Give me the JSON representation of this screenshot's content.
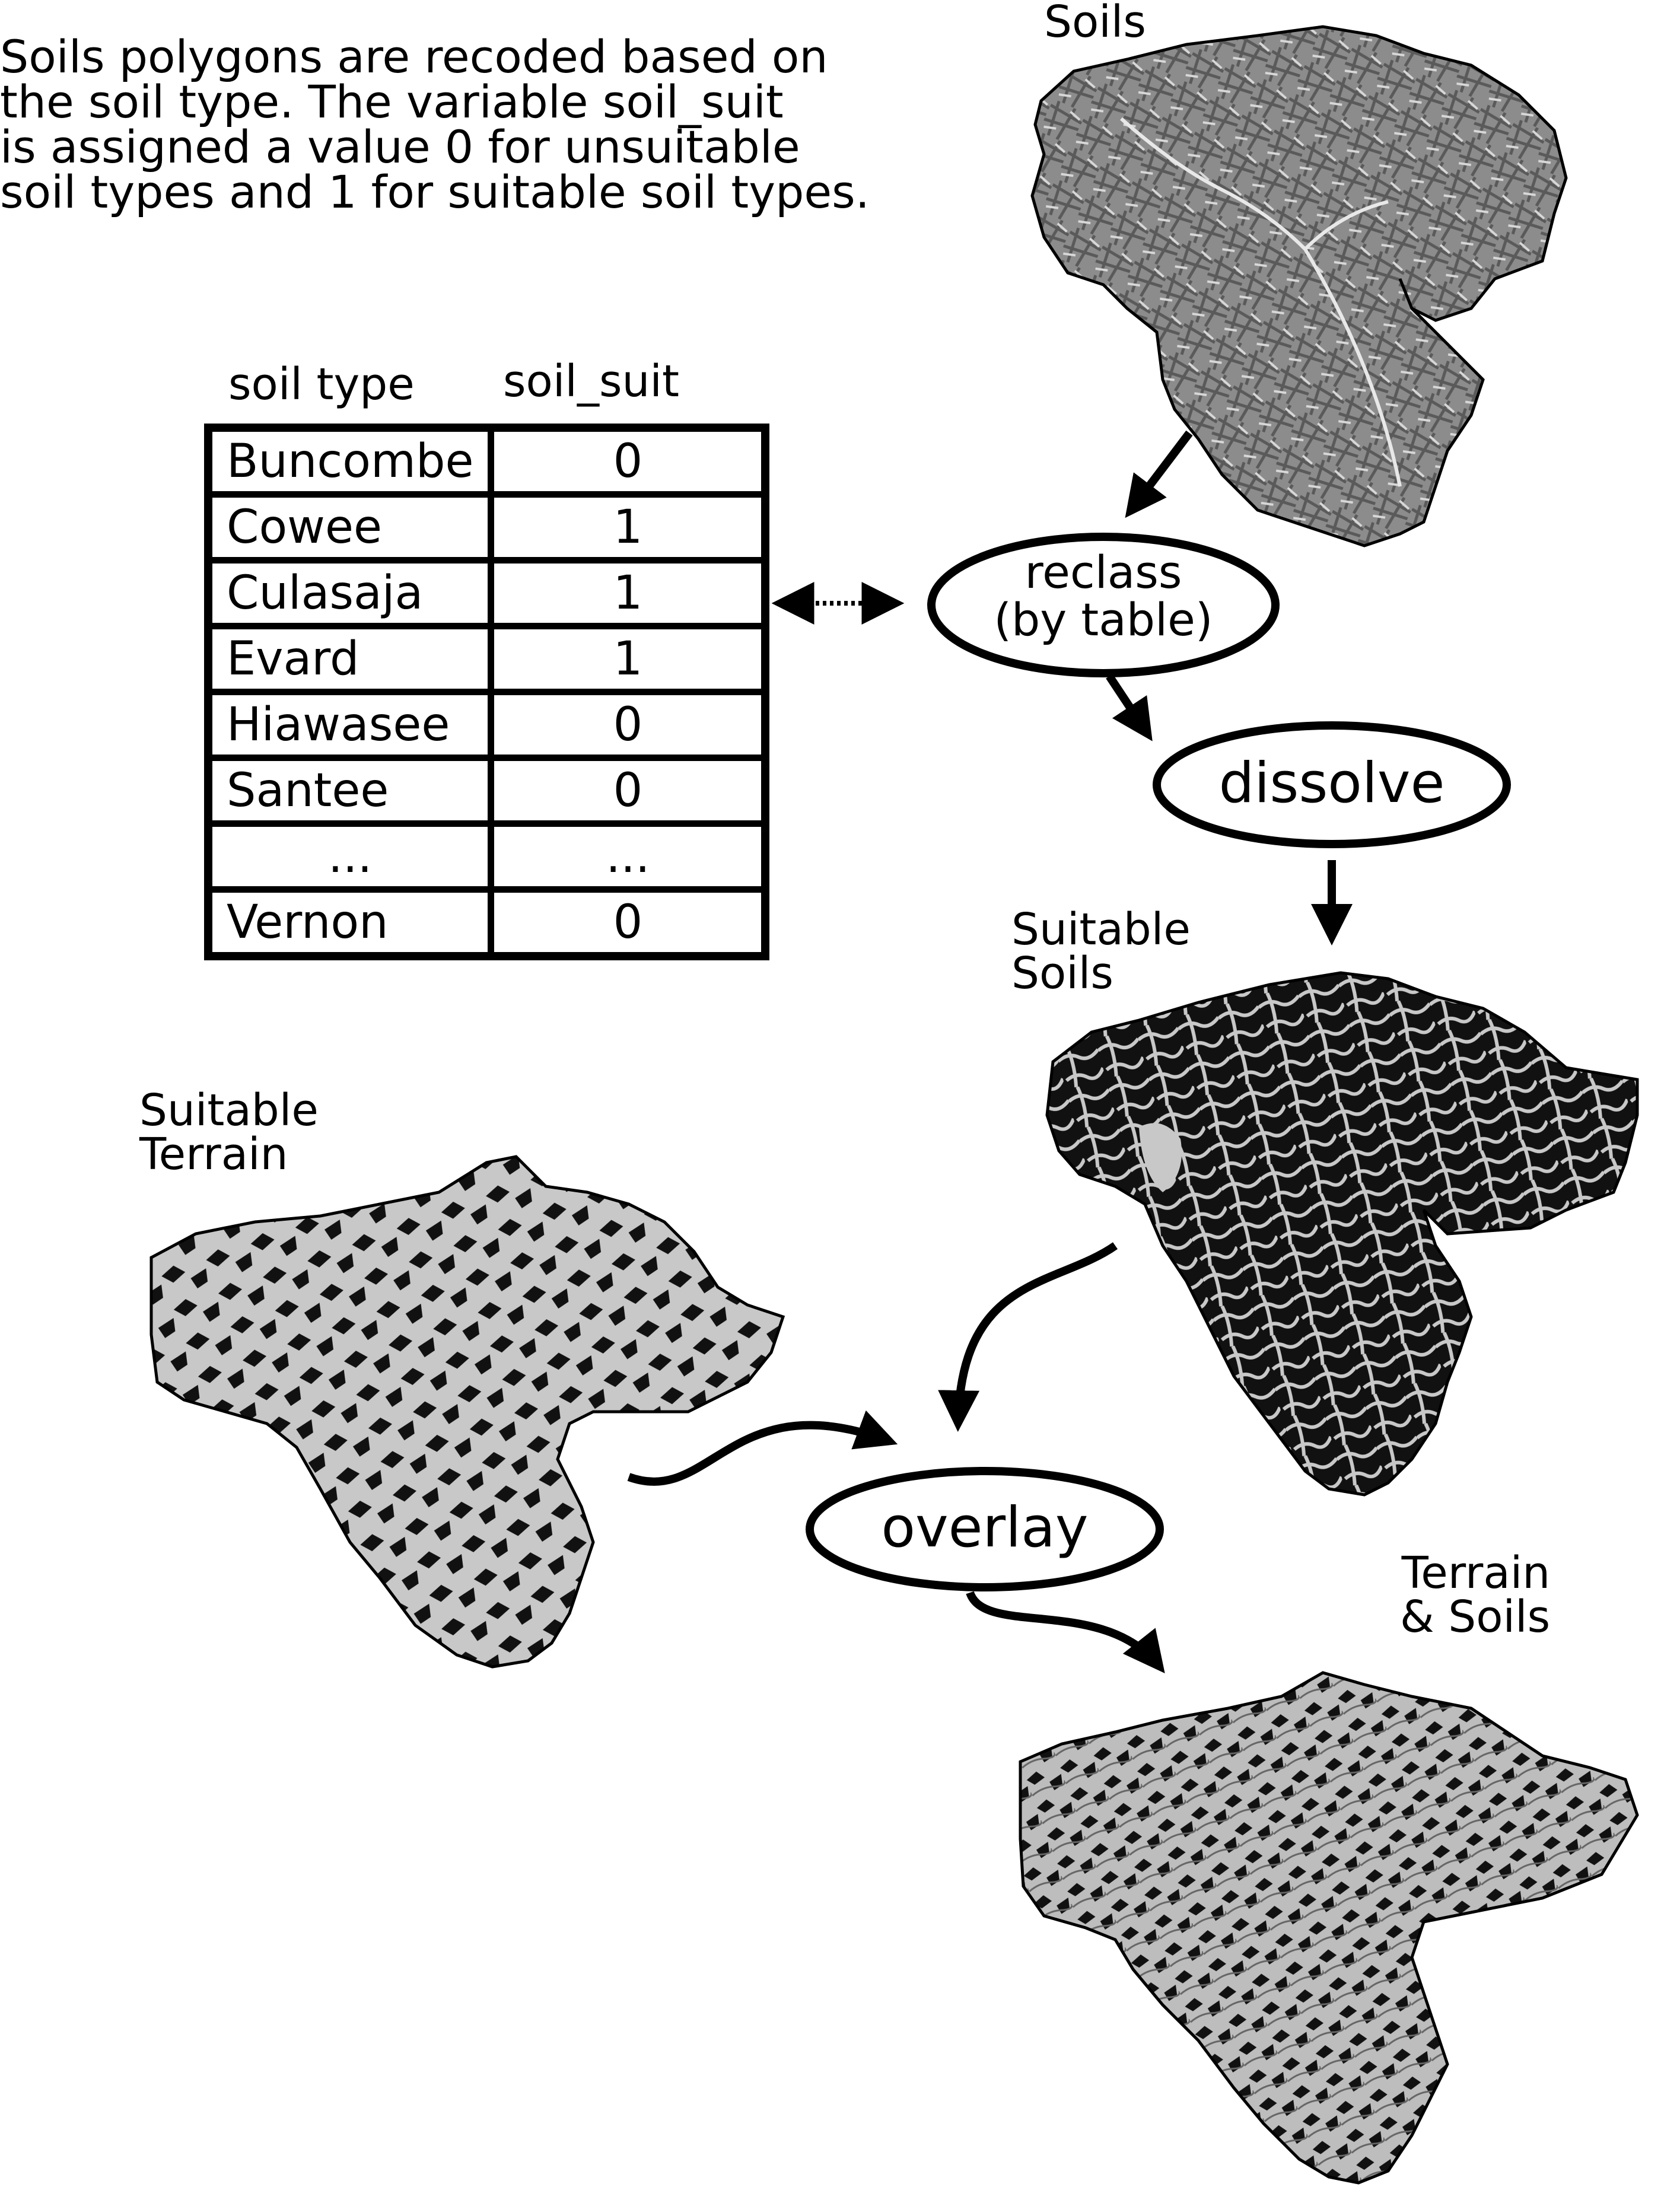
{
  "caption": {
    "lines": [
      "Soils polygons are recoded based on",
      "the soil type.  The variable soil_suit",
      "is assigned a value 0 for unsuitable",
      "soil types and 1 for suitable soil types."
    ]
  },
  "table": {
    "headers": [
      "soil type",
      "soil_suit"
    ],
    "rows": [
      {
        "type": "Buncombe",
        "value": "0"
      },
      {
        "type": "Cowee",
        "value": "1"
      },
      {
        "type": "Culasaja",
        "value": "1"
      },
      {
        "type": "Evard",
        "value": "1"
      },
      {
        "type": "Hiawasee",
        "value": "0"
      },
      {
        "type": "Santee",
        "value": "0"
      },
      {
        "type": "...",
        "value": "..."
      },
      {
        "type": "Vernon",
        "value": "0"
      }
    ]
  },
  "maps": {
    "soils": "Soils",
    "suitable_soils": [
      "Suitable",
      "Soils"
    ],
    "suitable_terrain": [
      "Suitable",
      "Terrain"
    ],
    "terrain_soils": [
      "Terrain",
      "& Soils"
    ]
  },
  "processes": {
    "reclass": [
      "reclass",
      "(by table)"
    ],
    "dissolve": "dissolve",
    "overlay": "overlay"
  },
  "colors": {
    "ink": "#000000",
    "soils_fill": "#8c8c8c",
    "light_fill": "#c8c8c8",
    "dark_fill": "#111111"
  }
}
